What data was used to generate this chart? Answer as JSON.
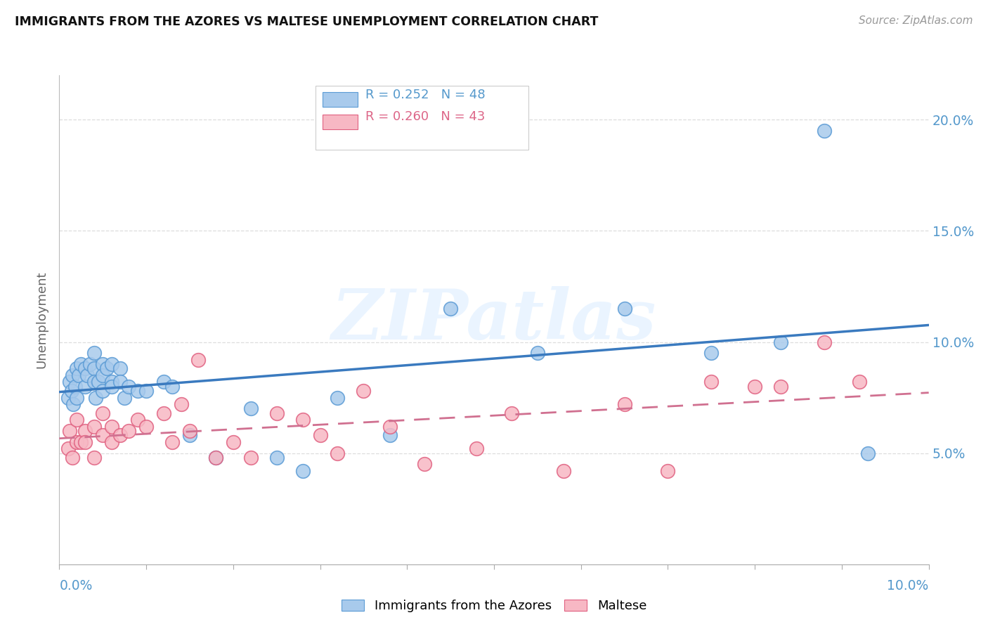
{
  "title": "IMMIGRANTS FROM THE AZORES VS MALTESE UNEMPLOYMENT CORRELATION CHART",
  "source": "Source: ZipAtlas.com",
  "ylabel": "Unemployment",
  "xlim": [
    0.0,
    0.1
  ],
  "ylim": [
    0.0,
    0.22
  ],
  "yticks": [
    0.05,
    0.1,
    0.15,
    0.2
  ],
  "ytick_labels": [
    "5.0%",
    "10.0%",
    "15.0%",
    "20.0%"
  ],
  "xtick_labels": [
    "0.0%",
    "10.0%"
  ],
  "legend_r1": "R = 0.252",
  "legend_n1": "N = 48",
  "legend_r2": "R = 0.260",
  "legend_n2": "N = 43",
  "series1_label": "Immigrants from the Azores",
  "series2_label": "Maltese",
  "color_blue_fill": "#a8caec",
  "color_blue_edge": "#5b9bd5",
  "color_pink_fill": "#f7b8c4",
  "color_pink_edge": "#e06080",
  "color_blue_line": "#3a7abf",
  "color_pink_line": "#d07090",
  "color_axis_text": "#5599cc",
  "color_grid": "#dddddd",
  "background": "#ffffff",
  "series1_x": [
    0.001,
    0.0012,
    0.0014,
    0.0015,
    0.0016,
    0.0018,
    0.002,
    0.002,
    0.0022,
    0.0025,
    0.003,
    0.003,
    0.0032,
    0.0035,
    0.004,
    0.004,
    0.004,
    0.0042,
    0.0045,
    0.005,
    0.005,
    0.005,
    0.0055,
    0.006,
    0.006,
    0.006,
    0.007,
    0.007,
    0.0075,
    0.008,
    0.009,
    0.01,
    0.012,
    0.013,
    0.015,
    0.018,
    0.022,
    0.025,
    0.028,
    0.032,
    0.038,
    0.045,
    0.055,
    0.065,
    0.075,
    0.083,
    0.088,
    0.093
  ],
  "series1_y": [
    0.075,
    0.082,
    0.078,
    0.085,
    0.072,
    0.08,
    0.088,
    0.075,
    0.085,
    0.09,
    0.088,
    0.08,
    0.085,
    0.09,
    0.095,
    0.088,
    0.082,
    0.075,
    0.082,
    0.09,
    0.085,
    0.078,
    0.088,
    0.082,
    0.09,
    0.08,
    0.088,
    0.082,
    0.075,
    0.08,
    0.078,
    0.078,
    0.082,
    0.08,
    0.058,
    0.048,
    0.07,
    0.048,
    0.042,
    0.075,
    0.058,
    0.115,
    0.095,
    0.115,
    0.095,
    0.1,
    0.195,
    0.05
  ],
  "series2_x": [
    0.001,
    0.0012,
    0.0015,
    0.002,
    0.002,
    0.0025,
    0.003,
    0.003,
    0.004,
    0.004,
    0.005,
    0.005,
    0.006,
    0.006,
    0.007,
    0.008,
    0.009,
    0.01,
    0.012,
    0.013,
    0.014,
    0.015,
    0.016,
    0.018,
    0.02,
    0.022,
    0.025,
    0.028,
    0.03,
    0.032,
    0.035,
    0.038,
    0.042,
    0.048,
    0.052,
    0.058,
    0.065,
    0.07,
    0.075,
    0.08,
    0.083,
    0.088,
    0.092
  ],
  "series2_y": [
    0.052,
    0.06,
    0.048,
    0.055,
    0.065,
    0.055,
    0.06,
    0.055,
    0.062,
    0.048,
    0.058,
    0.068,
    0.055,
    0.062,
    0.058,
    0.06,
    0.065,
    0.062,
    0.068,
    0.055,
    0.072,
    0.06,
    0.092,
    0.048,
    0.055,
    0.048,
    0.068,
    0.065,
    0.058,
    0.05,
    0.078,
    0.062,
    0.045,
    0.052,
    0.068,
    0.042,
    0.072,
    0.042,
    0.082,
    0.08,
    0.08,
    0.1,
    0.082
  ]
}
